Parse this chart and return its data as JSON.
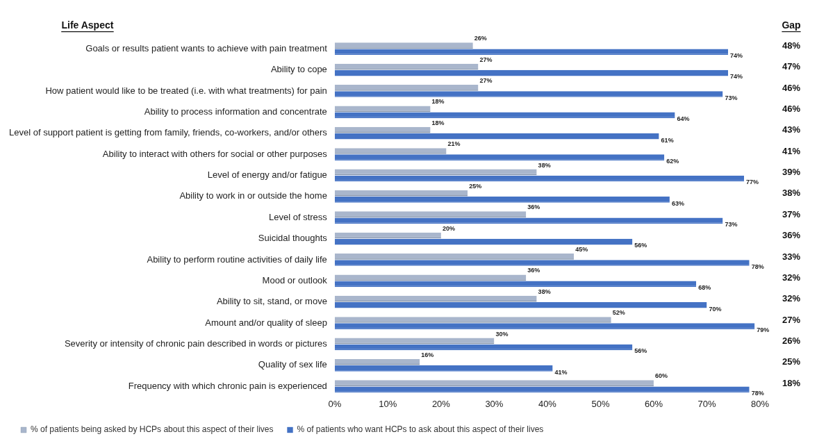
{
  "chart_data": {
    "type": "bar",
    "orientation": "horizontal",
    "ylabel": "Life Aspect",
    "categories": [
      "Goals or results patient wants to achieve with pain treatment",
      "Ability to cope",
      "How patient would like to be treated (i.e. with what treatments) for pain",
      "Ability to process information and concentrate",
      "Level of support patient is getting from family, friends, co-workers, and/or others",
      "Ability to interact with others for social or other purposes",
      "Level of energy and/or fatigue",
      "Ability to work in or outside the home",
      "Level of stress",
      "Suicidal thoughts",
      "Ability to perform routine activities of daily life",
      "Mood or outlook",
      "Ability to sit, stand, or move",
      "Amount and/or quality of sleep",
      "Severity or intensity of chronic pain described in words or pictures",
      "Quality of sex life",
      "Frequency with which chronic pain is experienced"
    ],
    "series": [
      {
        "name": "% of patients being asked by HCPs about this aspect of their lives",
        "color": "#a9b6cc",
        "values": [
          26,
          27,
          27,
          18,
          18,
          21,
          38,
          25,
          36,
          20,
          45,
          36,
          38,
          52,
          30,
          16,
          60
        ],
        "value_labels": [
          "26%",
          "27%",
          "27%",
          "18%",
          "18%",
          "21%",
          "38%",
          "25%",
          "36%",
          "20%",
          "45%",
          "36%",
          "38%",
          "52%",
          "30%",
          "16%",
          "60%"
        ]
      },
      {
        "name": "% of patients who want HCPs to ask about this aspect of their lives",
        "color": "#4472c4",
        "values": [
          74,
          74,
          73,
          64,
          61,
          62,
          77,
          63,
          73,
          56,
          78,
          68,
          70,
          79,
          56,
          41,
          78
        ],
        "value_labels": [
          "74%",
          "74%",
          "73%",
          "64%",
          "61%",
          "62%",
          "77%",
          "63%",
          "73%",
          "56%",
          "78%",
          "68%",
          "70%",
          "79%",
          "56%",
          "41%",
          "78%"
        ]
      }
    ],
    "xlim": [
      0,
      80
    ],
    "xticks": [
      {
        "value": 0,
        "label": "0%"
      },
      {
        "value": 10,
        "label": "10%"
      },
      {
        "value": 20,
        "label": "20%"
      },
      {
        "value": 30,
        "label": "30%"
      },
      {
        "value": 40,
        "label": "40%"
      },
      {
        "value": 50,
        "label": "50%"
      },
      {
        "value": 60,
        "label": "60%"
      },
      {
        "value": 70,
        "label": "70%"
      },
      {
        "value": 80,
        "label": "80%"
      }
    ],
    "grid": false,
    "legend": "bottom",
    "annotations": [
      "Gap",
      "48%",
      "47%",
      "46%",
      "46%",
      "43%",
      "41%",
      "39%",
      "38%",
      "37%",
      "36%",
      "33%",
      "32%",
      "32%",
      "27%",
      "26%",
      "25%",
      "18%"
    ]
  }
}
